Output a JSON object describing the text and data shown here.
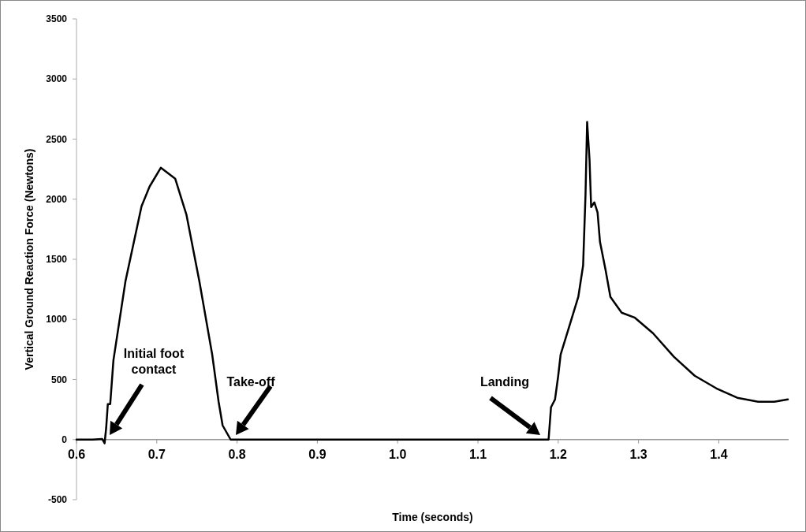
{
  "chart_data": {
    "type": "line",
    "xlabel": "Time (seconds)",
    "ylabel": "Vertical Ground Reaction Force (Newtons)",
    "xlim": [
      0.6,
      1.487
    ],
    "xticks": [
      {
        "value": 0.6,
        "label": "0.6"
      },
      {
        "value": 0.7,
        "label": "0.7"
      },
      {
        "value": 0.8,
        "label": "0.8"
      },
      {
        "value": 0.9,
        "label": "0.9"
      },
      {
        "value": 1.0,
        "label": "1.0"
      },
      {
        "value": 1.1,
        "label": "1.1"
      },
      {
        "value": 1.2,
        "label": "1.2"
      },
      {
        "value": 1.3,
        "label": "1.3"
      },
      {
        "value": 1.4,
        "label": "1.4"
      }
    ],
    "ylim": [
      -500,
      3500
    ],
    "yticks": [
      -500,
      0,
      500,
      1000,
      1500,
      2000,
      2500,
      3000,
      3500
    ],
    "grid": false,
    "line_style": "solid",
    "series": [
      {
        "color": "#000000",
        "x": [
          0.6,
          0.62,
          0.632,
          0.635,
          0.637,
          0.639,
          0.642,
          0.646,
          0.661,
          0.681,
          0.691,
          0.705,
          0.723,
          0.737,
          0.753,
          0.769,
          0.777,
          0.782,
          0.792,
          0.9,
          1.0,
          1.1,
          1.188,
          1.191,
          1.196,
          1.2,
          1.203,
          1.213,
          1.225,
          1.231,
          1.234,
          1.236,
          1.239,
          1.241,
          1.245,
          1.249,
          1.252,
          1.259,
          1.265,
          1.279,
          1.295,
          1.318,
          1.344,
          1.37,
          1.397,
          1.423,
          1.449,
          1.469,
          1.486
        ],
        "values": [
          0,
          0,
          5,
          -30,
          100,
          295,
          295,
          660,
          1318,
          1941,
          2105,
          2262,
          2170,
          1869,
          1318,
          708,
          315,
          118,
          0,
          0,
          0,
          0,
          0,
          269,
          334,
          531,
          708,
          925,
          1187,
          1449,
          2039,
          2643,
          2328,
          1934,
          1974,
          1889,
          1646,
          1410,
          1187,
          1056,
          1016,
          885,
          689,
          531,
          426,
          348,
          315,
          315,
          334
        ]
      }
    ],
    "annotations": [
      "Initial foot contact",
      "Take-off",
      "Landing"
    ]
  }
}
